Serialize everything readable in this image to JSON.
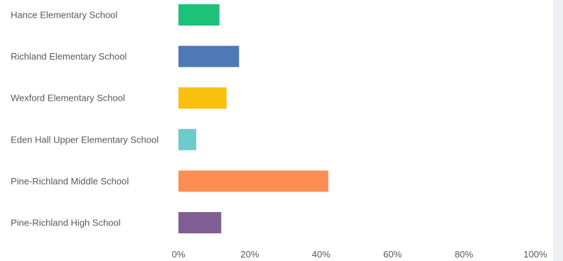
{
  "chart_data": {
    "type": "bar",
    "orientation": "horizontal",
    "categories": [
      "Hance Elementary School",
      "Richland Elementary School",
      "Wexford Elementary School",
      "Eden Hall Upper Elementary School",
      "Pine-Richland Middle School",
      "Pine-Richland High School"
    ],
    "values": [
      11.5,
      17,
      13.5,
      5,
      42,
      12
    ],
    "colors": [
      "#1cc27a",
      "#4e79b7",
      "#f9c10d",
      "#6ecbcb",
      "#fe8d52",
      "#7f5f93"
    ],
    "xlim": [
      0,
      100
    ],
    "x_ticks": [
      0,
      20,
      40,
      60,
      80,
      100
    ],
    "x_tick_labels": [
      "0%",
      "20%",
      "40%",
      "60%",
      "80%",
      "100%"
    ],
    "grid": false,
    "title": "",
    "xlabel": "",
    "ylabel": ""
  }
}
